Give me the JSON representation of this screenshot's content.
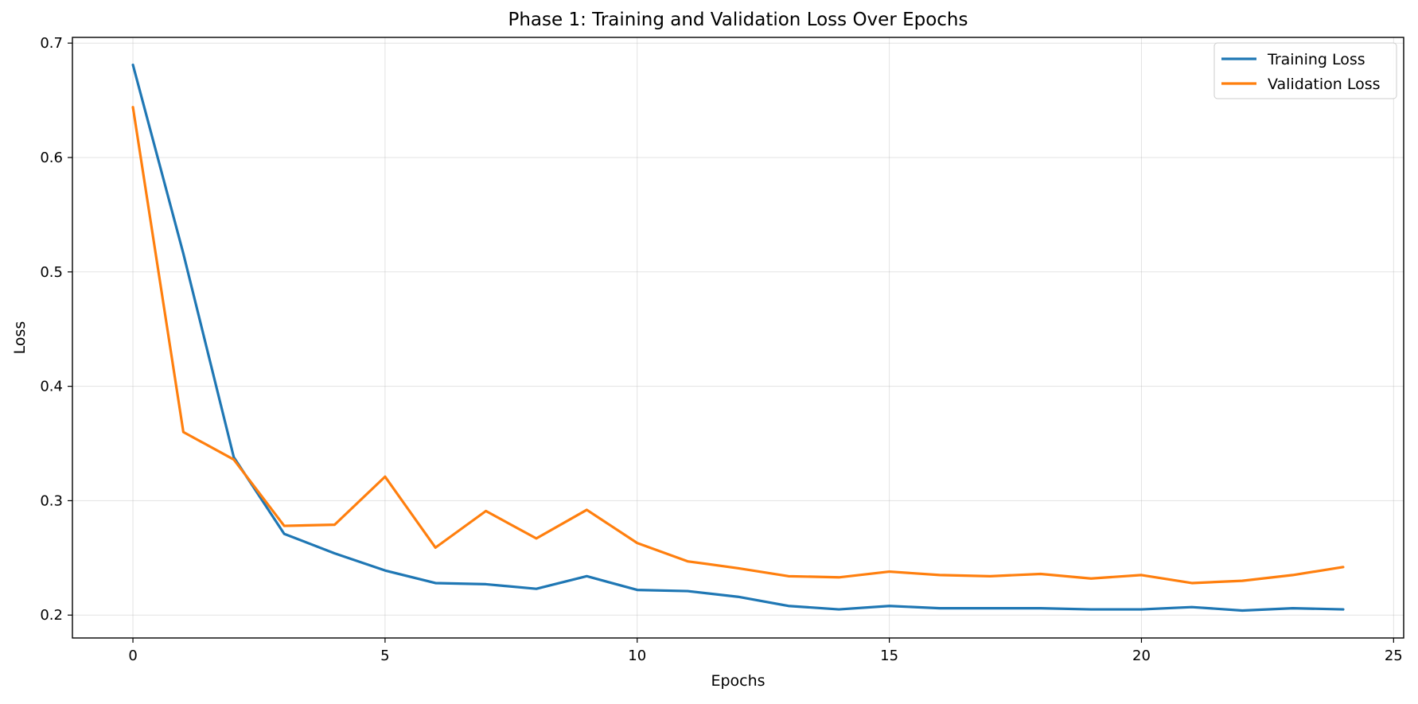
{
  "chart_data": {
    "type": "line",
    "title": "Phase 1: Training and Validation Loss Over Epochs",
    "xlabel": "Epochs",
    "ylabel": "Loss",
    "xlim": [
      -1.2,
      25.2
    ],
    "ylim": [
      0.18,
      0.705
    ],
    "xticks": [
      0,
      5,
      10,
      15,
      20,
      25
    ],
    "yticks": [
      0.2,
      0.3,
      0.4,
      0.5,
      0.6,
      0.7
    ],
    "xtick_labels": [
      "0",
      "5",
      "10",
      "15",
      "20",
      "25"
    ],
    "ytick_labels": [
      "0.2",
      "0.3",
      "0.4",
      "0.5",
      "0.6",
      "0.7"
    ],
    "grid": true,
    "legend_position": "top-right",
    "x": [
      0,
      1,
      2,
      3,
      4,
      5,
      6,
      7,
      8,
      9,
      10,
      11,
      12,
      13,
      14,
      15,
      16,
      17,
      18,
      19,
      20,
      21,
      22,
      23,
      24
    ],
    "series": [
      {
        "name": "Training Loss",
        "color": "#1f77b4",
        "values": [
          0.681,
          0.516,
          0.338,
          0.271,
          0.254,
          0.239,
          0.228,
          0.227,
          0.223,
          0.234,
          0.222,
          0.221,
          0.216,
          0.208,
          0.205,
          0.208,
          0.206,
          0.206,
          0.206,
          0.205,
          0.205,
          0.207,
          0.204,
          0.206,
          0.205
        ]
      },
      {
        "name": "Validation Loss",
        "color": "#ff7f0e",
        "values": [
          0.644,
          0.36,
          0.336,
          0.278,
          0.279,
          0.321,
          0.259,
          0.291,
          0.267,
          0.292,
          0.263,
          0.247,
          0.241,
          0.234,
          0.233,
          0.238,
          0.235,
          0.234,
          0.236,
          0.232,
          0.235,
          0.228,
          0.23,
          0.235,
          0.242
        ]
      }
    ]
  }
}
